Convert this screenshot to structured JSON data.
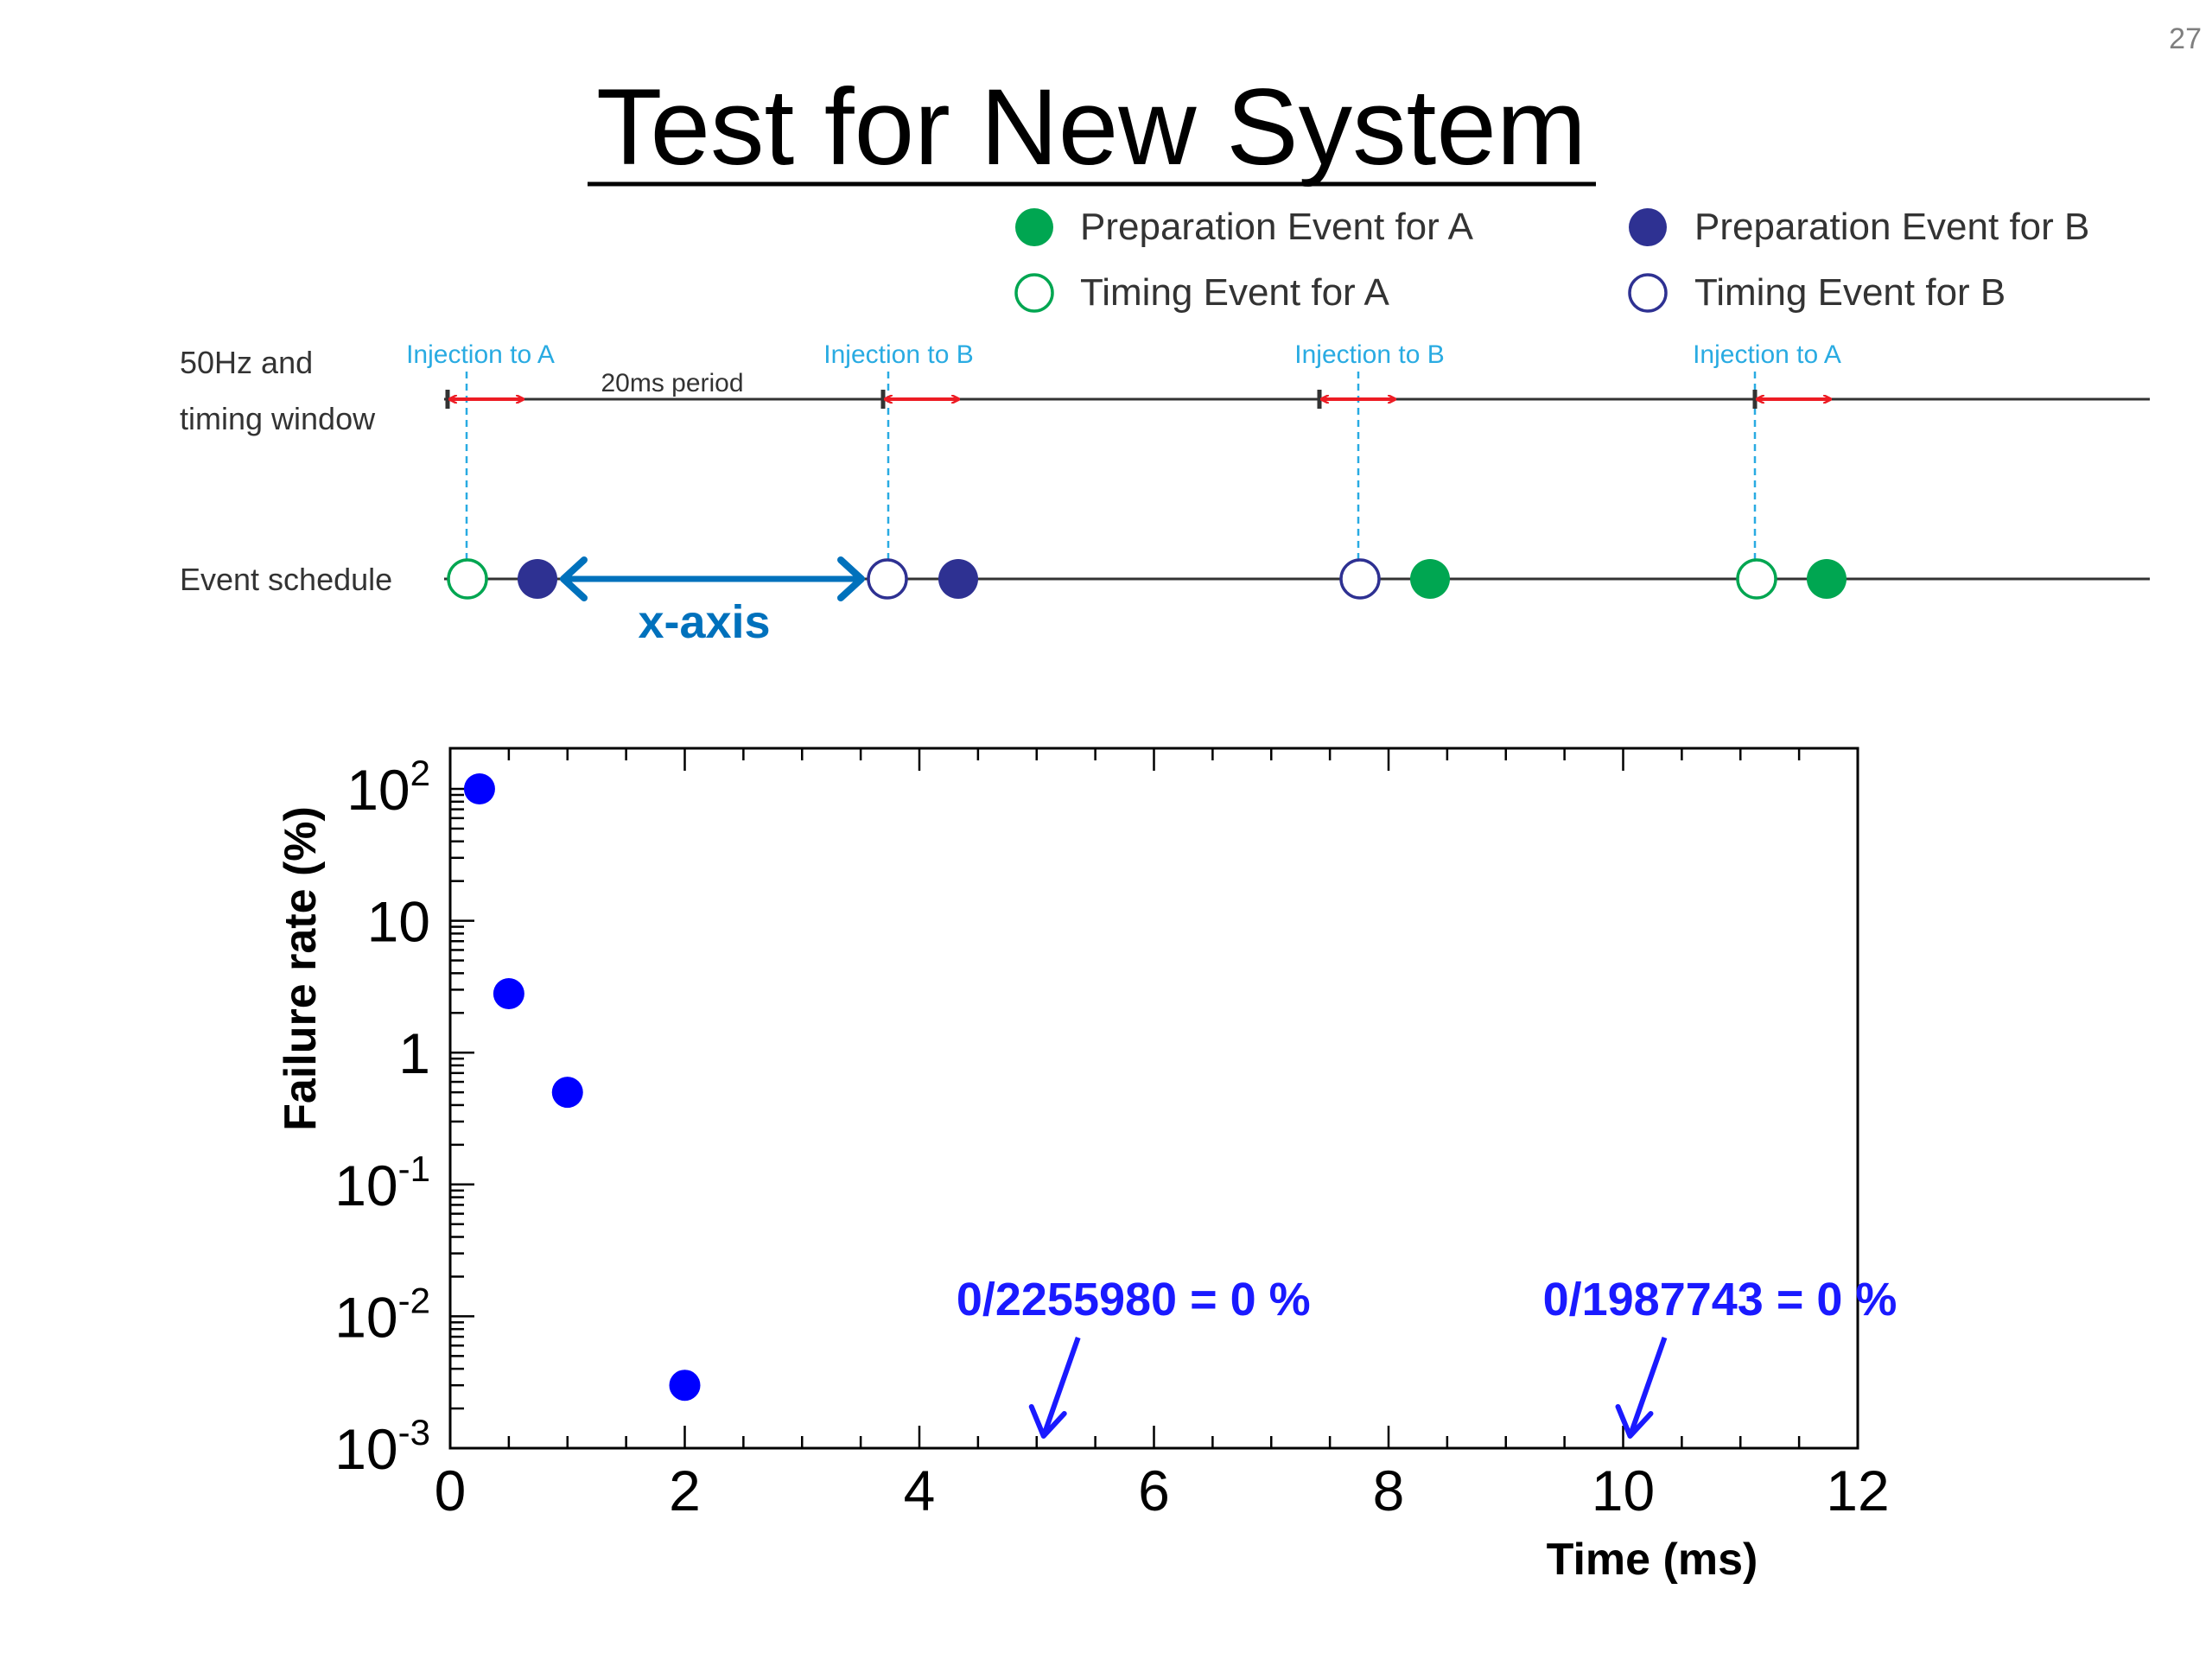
{
  "slide": {
    "page_number": "27",
    "title": "Test for New System"
  },
  "colors": {
    "green": "#00a651",
    "navy": "#2e3192",
    "cyan": "#29abe2",
    "red": "#ed1c24",
    "blue_arrow": "#0071bc",
    "point_blue": "#0000ff",
    "annotation_blue": "#1a1aff"
  },
  "legend": [
    {
      "label": "Preparation Event for A",
      "symbol": "filled-circle",
      "color": "#00a651"
    },
    {
      "label": "Preparation Event for B",
      "symbol": "filled-circle",
      "color": "#2e3192"
    },
    {
      "label": "Timing Event for A",
      "symbol": "open-circle",
      "color": "#00a651"
    },
    {
      "label": "Timing Event for B",
      "symbol": "open-circle",
      "color": "#2e3192"
    }
  ],
  "timing_diagram": {
    "row1_label_line1": "50Hz and",
    "row1_label_line2": "timing window",
    "row2_label": "Event schedule",
    "period_label": "20ms period",
    "x_axis_label": "x-axis",
    "injections": [
      {
        "label": "Injection to A",
        "timing_event": "A",
        "preparation_event": "B"
      },
      {
        "label": "Injection to B",
        "timing_event": "B",
        "preparation_event": "B"
      },
      {
        "label": "Injection to B",
        "timing_event": "B",
        "preparation_event": "A"
      },
      {
        "label": "Injection to A",
        "timing_event": "A",
        "preparation_event": "A"
      }
    ]
  },
  "chart_data": {
    "type": "scatter",
    "title": "",
    "xlabel": "Time (ms)",
    "ylabel": "Failure rate (%)",
    "xlim": [
      0,
      12
    ],
    "ylim": [
      0.001,
      100
    ],
    "y_scale": "log",
    "x_ticks": [
      "0",
      "2",
      "4",
      "6",
      "8",
      "10",
      "12"
    ],
    "y_ticks": [
      {
        "value": 100,
        "base": "10",
        "exp": "2"
      },
      {
        "value": 10,
        "base": "10",
        "exp": ""
      },
      {
        "value": 1,
        "base": "1",
        "exp": ""
      },
      {
        "value": 0.1,
        "base": "10",
        "exp": "-1"
      },
      {
        "value": 0.01,
        "base": "10",
        "exp": "-2"
      },
      {
        "value": 0.001,
        "base": "10",
        "exp": "-3"
      }
    ],
    "points": [
      {
        "x": 0.25,
        "y": 100
      },
      {
        "x": 0.5,
        "y": 2.8
      },
      {
        "x": 1,
        "y": 0.5
      },
      {
        "x": 2,
        "y": 0.003
      }
    ],
    "annotations": [
      {
        "text": "0/2255980 = 0 %",
        "x": 5
      },
      {
        "text": "0/1987743 = 0 %",
        "x": 10
      }
    ],
    "grid": false
  }
}
